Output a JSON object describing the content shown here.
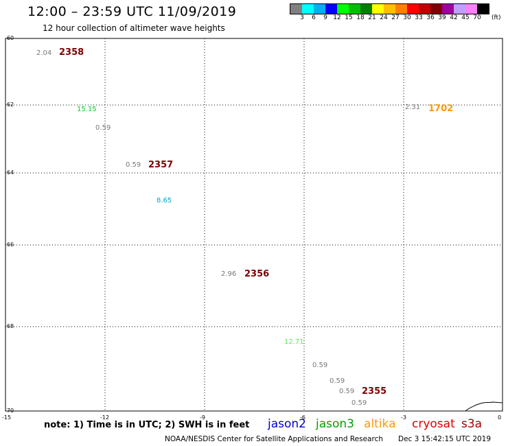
{
  "title": "12:00 – 23:59 UTC 11/09/2019",
  "subtitle": "12 hour collection of altimeter wave heights",
  "colorbar": {
    "colors": [
      "#808080",
      "#00ffff",
      "#00b0f0",
      "#0000ff",
      "#00ff00",
      "#00c000",
      "#008000",
      "#ffff00",
      "#ffc000",
      "#ff8000",
      "#ff0000",
      "#c00000",
      "#800000",
      "#a000a0",
      "#c0a0ff",
      "#ff80ff",
      "#000000"
    ],
    "labels": [
      "3",
      "6",
      "9",
      "12",
      "15",
      "18",
      "21",
      "24",
      "27",
      "30",
      "33",
      "36",
      "39",
      "42",
      "45",
      "70"
    ],
    "unit": "(ft)"
  },
  "map": {
    "lat_labels": [
      "-60",
      "-62",
      "-64",
      "-66",
      "-68",
      "-70"
    ],
    "lon_labels": [
      "-15",
      "-12",
      "-9",
      "-6",
      "-3",
      "0"
    ],
    "points": [
      {
        "text": "2.04",
        "color": "#777777"
      },
      {
        "text": "15.15",
        "color": "#22bb22"
      },
      {
        "text": "0.59",
        "color": "#777777"
      },
      {
        "text": "0.59",
        "color": "#777777"
      },
      {
        "text": "8.65",
        "color": "#00a8d8"
      },
      {
        "text": "2.31",
        "color": "#777777"
      },
      {
        "text": "1702",
        "color": "#ff9900"
      },
      {
        "text": "2.96",
        "color": "#777777"
      },
      {
        "text": "12.71",
        "color": "#55ee55"
      },
      {
        "text": "0.59",
        "color": "#777777"
      },
      {
        "text": "0.59",
        "color": "#777777"
      },
      {
        "text": "0.59",
        "color": "#777777"
      },
      {
        "text": "0.59",
        "color": "#777777"
      }
    ],
    "pass_times": [
      "2358",
      "2357",
      "2356",
      "2355"
    ]
  },
  "note": "note: 1) Time is in UTC; 2) SWH is in feet",
  "satellites": [
    {
      "name": "jason2",
      "color": "#0000cc"
    },
    {
      "name": "jason3",
      "color": "#00a000"
    },
    {
      "name": "altika",
      "color": "#ff9900"
    },
    {
      "name": "cryosat",
      "color": "#dd0000"
    },
    {
      "name": "s3a",
      "color": "#a00000"
    }
  ],
  "footer": {
    "credit": "NOAA/NESDIS Center for Satellite Applications and Research",
    "timestamp": "Dec  3 15:42:15 UTC 2019"
  }
}
